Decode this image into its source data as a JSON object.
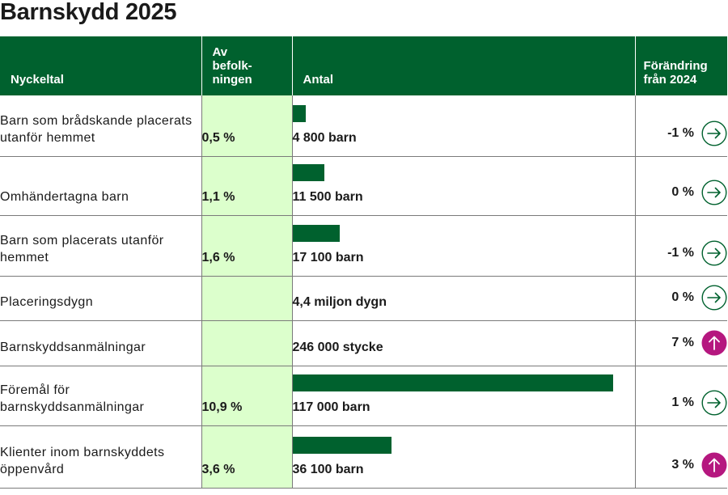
{
  "title": "Barnskydd 2025",
  "headers": {
    "name": "Nyckeltal",
    "share": "Av befolk-ningen",
    "count": "Antal",
    "change": "Förändring från 2024"
  },
  "colors": {
    "header_bg": "#00612e",
    "bar": "#00612e",
    "share_column_bg": "#dcffcc",
    "arrow_neutral": "#00612e",
    "arrow_up": "#b5177f"
  },
  "rows": [
    {
      "name": "Barn som brådskande placerats utanför hemmet",
      "share": "0,5 %",
      "count": "4 800 barn",
      "change": "-1 %",
      "icon": "arrow-right-icon"
    },
    {
      "name": "Omhändertagna barn",
      "share": "1,1 %",
      "count": "11 500 barn",
      "change": "0 %",
      "icon": "arrow-right-icon"
    },
    {
      "name": "Barn som placerats utanför hemmet",
      "share": "1,6 %",
      "count": "17 100 barn",
      "change": "-1 %",
      "icon": "arrow-right-icon"
    },
    {
      "name": "Placeringsdygn",
      "share": "",
      "count": "4,4 miljon dygn",
      "change": "0 %",
      "icon": "arrow-right-icon"
    },
    {
      "name": "Barnskyddsanmälningar",
      "share": "",
      "count": "246 000 stycke",
      "change": "7 %",
      "icon": "arrow-up-icon"
    },
    {
      "name": "Föremål för barnskyddsanmälningar",
      "share": "10,9 %",
      "count": "117 000 barn",
      "change": "1 %",
      "icon": "arrow-right-icon"
    },
    {
      "name": "Klienter inom barnskyddets öppenvård",
      "share": "3,6 %",
      "count": "36 100 barn",
      "change": "3 %",
      "icon": "arrow-up-icon"
    }
  ],
  "chart_data": {
    "type": "bar",
    "categories": [
      "Barn som brådskande placerats utanför hemmet",
      "Omhändertagna barn",
      "Barn som placerats utanför hemmet",
      "Föremål för barnskyddsanmälningar",
      "Klienter inom barnskyddets öppenvård"
    ],
    "values": [
      4800,
      11500,
      17100,
      117000,
      36100
    ],
    "xlim": [
      0,
      117000
    ],
    "grid": false
  }
}
